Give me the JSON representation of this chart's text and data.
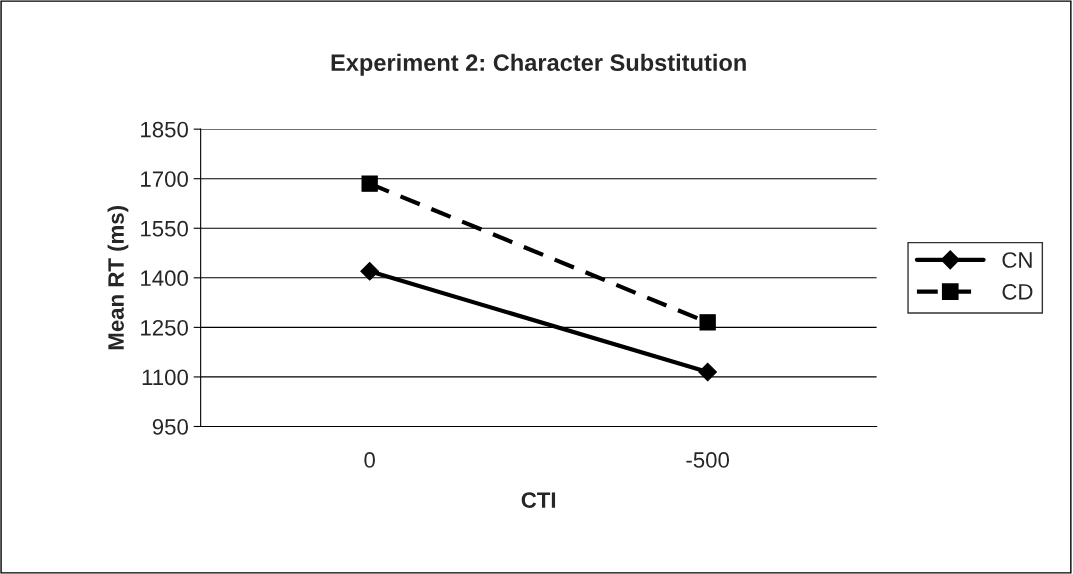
{
  "chart_data": {
    "type": "line",
    "title": "Experiment 2: Character Substitution",
    "xlabel": "CTI",
    "ylabel": "Mean RT (ms)",
    "categories": [
      "0",
      "-500"
    ],
    "series": [
      {
        "name": "CN",
        "color": "#000000",
        "values": [
          1420,
          1115
        ],
        "marker": "diamond",
        "line_style": "solid"
      },
      {
        "name": "CD",
        "color": "#000000",
        "values": [
          1685,
          1265
        ],
        "marker": "square",
        "line_style": "dashed"
      }
    ],
    "ylim": [
      950,
      1850
    ],
    "yticks": [
      950,
      1100,
      1250,
      1400,
      1550,
      1700,
      1850
    ],
    "grid": "y",
    "legend": "right"
  }
}
